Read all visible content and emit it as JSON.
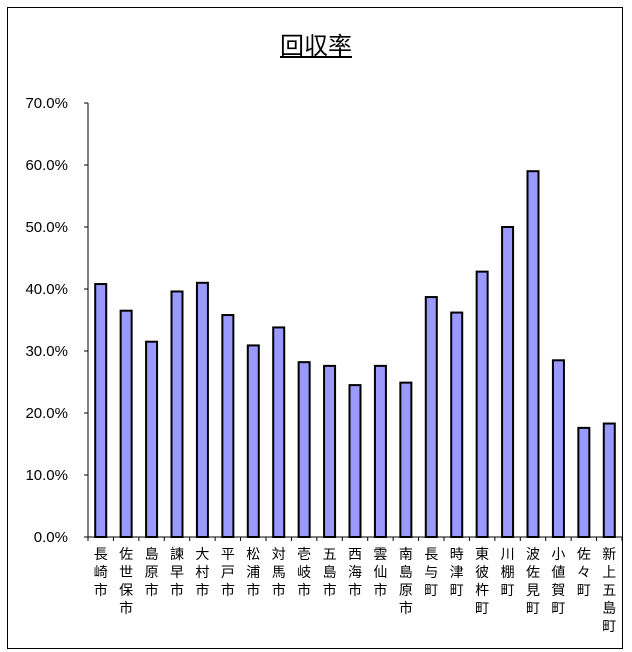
{
  "chart_data": {
    "type": "bar",
    "title": "回収率",
    "xlabel": "",
    "ylabel": "",
    "ylim": [
      0,
      70
    ],
    "yticks": [
      "0.0%",
      "10.0%",
      "20.0%",
      "30.0%",
      "40.0%",
      "50.0%",
      "60.0%",
      "70.0%"
    ],
    "grid": false,
    "legend": "none",
    "bar_color": "#9999ff",
    "categories": [
      "長崎市",
      "佐世保市",
      "島原市",
      "諫早市",
      "大村市",
      "平戸市",
      "松浦市",
      "対馬市",
      "壱岐市",
      "五島市",
      "西海市",
      "雲仙市",
      "南島原市",
      "長与町",
      "時津町",
      "東彼杵町",
      "川棚町",
      "波佐見町",
      "小値賀町",
      "佐々町",
      "新上五島町"
    ],
    "values": [
      40.8,
      36.5,
      31.5,
      39.6,
      41.0,
      35.8,
      30.9,
      33.8,
      28.2,
      27.6,
      24.5,
      27.6,
      24.9,
      38.7,
      36.2,
      42.8,
      50.0,
      59.0,
      28.5,
      17.6,
      18.3
    ]
  }
}
